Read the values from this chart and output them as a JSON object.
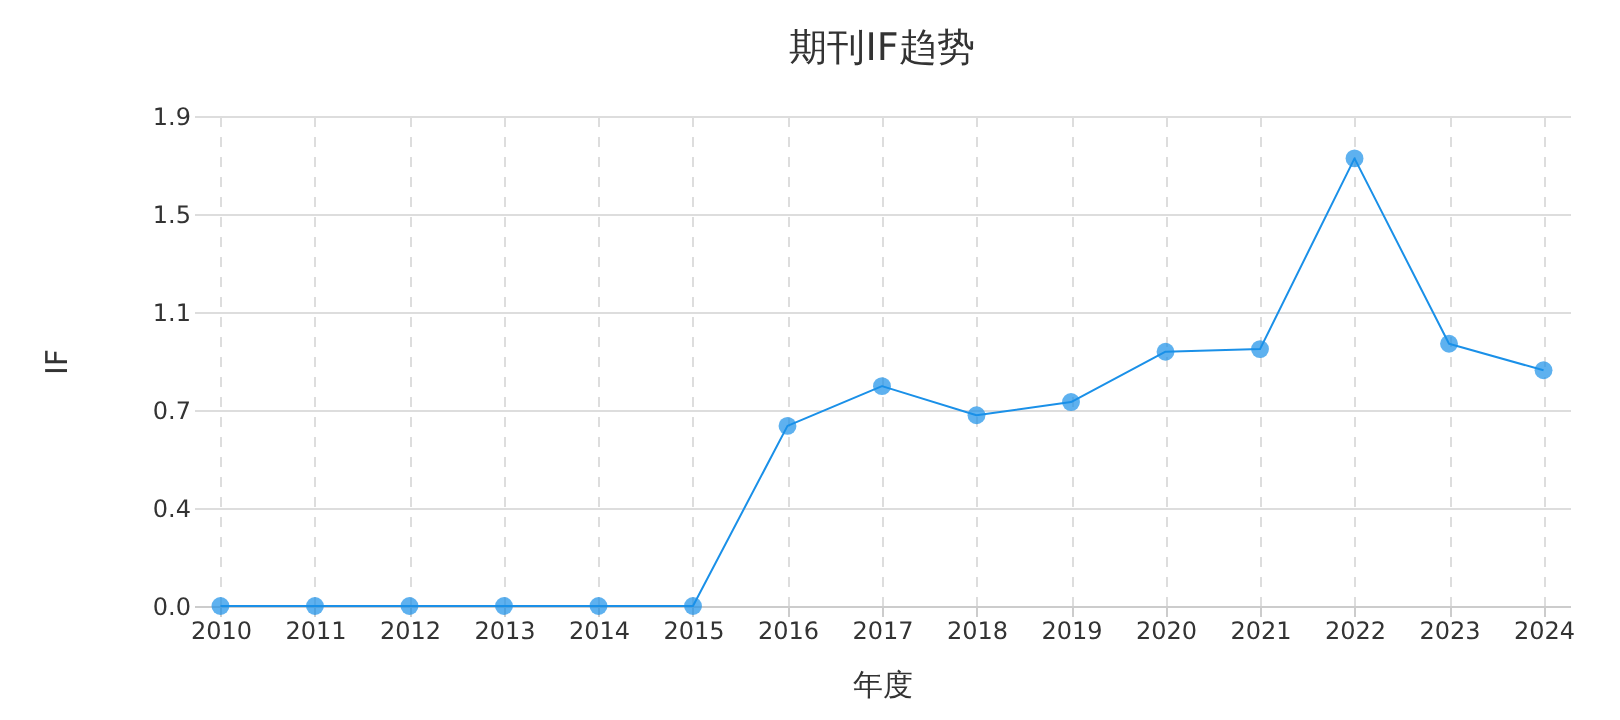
{
  "chart_data": {
    "type": "line",
    "title": "期刊IF趋势",
    "xlabel": "年度",
    "ylabel": "IF",
    "categories": [
      "2010",
      "2011",
      "2012",
      "2013",
      "2014",
      "2015",
      "2016",
      "2017",
      "2018",
      "2019",
      "2020",
      "2021",
      "2022",
      "2023",
      "2024"
    ],
    "series": [
      {
        "color": "#1a90e8",
        "values": [
          0,
          0,
          0,
          0,
          0,
          0,
          0.68,
          0.83,
          0.72,
          0.77,
          0.96,
          0.97,
          1.69,
          0.99,
          0.89
        ]
      }
    ],
    "ylim": [
      0,
      1.85
    ],
    "yticks": [
      {
        "value": 0,
        "label": "0.0"
      },
      {
        "value": 0.37,
        "label": "0.4"
      },
      {
        "value": 0.74,
        "label": "0.7"
      },
      {
        "value": 1.11,
        "label": "1.1"
      },
      {
        "value": 1.48,
        "label": "1.5"
      },
      {
        "value": 1.85,
        "label": "1.9"
      }
    ],
    "grid": true,
    "marker": "circle",
    "line_style": "solid"
  }
}
